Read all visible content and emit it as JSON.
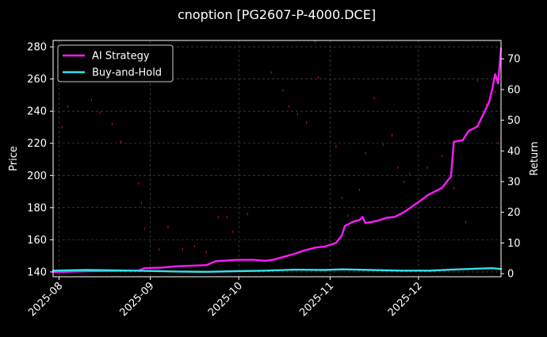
{
  "chart_data": {
    "type": "line",
    "title": "cnoption [PG2607-P-4000.DCE]",
    "ylabel": "Price",
    "y2label": "Return",
    "ylim": [
      137,
      284
    ],
    "y2lim": [
      -1,
      76
    ],
    "xlim": [
      "2025-07-30",
      "2025-12-29"
    ],
    "yticks": [
      140,
      160,
      180,
      200,
      220,
      240,
      260,
      280
    ],
    "y2ticks": [
      0,
      10,
      20,
      30,
      40,
      50,
      60,
      70
    ],
    "xticks": [
      {
        "date": "2025-08-01",
        "label": "2025-08"
      },
      {
        "date": "2025-09-01",
        "label": "2025-09"
      },
      {
        "date": "2025-10-01",
        "label": "2025-10"
      },
      {
        "date": "2025-11-01",
        "label": "2025-11"
      },
      {
        "date": "2025-12-01",
        "label": "2025-12"
      }
    ],
    "grid": true,
    "legend_position": "top-left",
    "series": [
      {
        "name": "AI Strategy",
        "axis": "right",
        "color": "#ff1aff",
        "points": [
          [
            "2025-07-30",
            0.5
          ],
          [
            "2025-08-10",
            0.8
          ],
          [
            "2025-08-20",
            0.9
          ],
          [
            "2025-08-28",
            1.0
          ],
          [
            "2025-08-30",
            1.8
          ],
          [
            "2025-09-05",
            2.0
          ],
          [
            "2025-09-10",
            2.4
          ],
          [
            "2025-09-15",
            2.6
          ],
          [
            "2025-09-20",
            2.8
          ],
          [
            "2025-09-23",
            4.0
          ],
          [
            "2025-09-27",
            4.3
          ],
          [
            "2025-10-01",
            4.5
          ],
          [
            "2025-10-06",
            4.5
          ],
          [
            "2025-10-10",
            4.2
          ],
          [
            "2025-10-13",
            4.6
          ],
          [
            "2025-10-16",
            5.4
          ],
          [
            "2025-10-20",
            6.5
          ],
          [
            "2025-10-23",
            7.5
          ],
          [
            "2025-10-27",
            8.5
          ],
          [
            "2025-10-30",
            8.8
          ],
          [
            "2025-11-03",
            10.0
          ],
          [
            "2025-11-05",
            12.5
          ],
          [
            "2025-11-06",
            15.5
          ],
          [
            "2025-11-09",
            17.0
          ],
          [
            "2025-11-11",
            17.5
          ],
          [
            "2025-11-12",
            18.5
          ],
          [
            "2025-11-13",
            16.5
          ],
          [
            "2025-11-16",
            17.0
          ],
          [
            "2025-11-18",
            17.5
          ],
          [
            "2025-11-20",
            18.2
          ],
          [
            "2025-11-23",
            18.5
          ],
          [
            "2025-11-26",
            20.0
          ],
          [
            "2025-11-29",
            22.0
          ],
          [
            "2025-12-02",
            24.0
          ],
          [
            "2025-12-04",
            25.5
          ],
          [
            "2025-12-06",
            26.5
          ],
          [
            "2025-12-09",
            28.0
          ],
          [
            "2025-12-11",
            30.5
          ],
          [
            "2025-12-12",
            31.5
          ],
          [
            "2025-12-13",
            43.0
          ],
          [
            "2025-12-16",
            43.5
          ],
          [
            "2025-12-18",
            46.5
          ],
          [
            "2025-12-21",
            48.0
          ],
          [
            "2025-12-23",
            52.0
          ],
          [
            "2025-12-25",
            56.0
          ],
          [
            "2025-12-26",
            60.0
          ],
          [
            "2025-12-27",
            65.0
          ],
          [
            "2025-12-28",
            62.0
          ],
          [
            "2025-12-29",
            73.5
          ]
        ]
      },
      {
        "name": "Buy-and-Hold",
        "axis": "right",
        "color": "#33e0ee",
        "points": [
          [
            "2025-07-30",
            1.0
          ],
          [
            "2025-08-10",
            1.2
          ],
          [
            "2025-08-20",
            1.1
          ],
          [
            "2025-08-30",
            0.9
          ],
          [
            "2025-09-10",
            0.7
          ],
          [
            "2025-09-20",
            0.6
          ],
          [
            "2025-09-30",
            0.8
          ],
          [
            "2025-10-10",
            1.0
          ],
          [
            "2025-10-20",
            1.3
          ],
          [
            "2025-10-30",
            1.2
          ],
          [
            "2025-11-05",
            1.4
          ],
          [
            "2025-11-15",
            1.2
          ],
          [
            "2025-11-25",
            1.0
          ],
          [
            "2025-12-05",
            1.0
          ],
          [
            "2025-12-12",
            1.3
          ],
          [
            "2025-12-20",
            1.6
          ],
          [
            "2025-12-26",
            1.8
          ],
          [
            "2025-12-29",
            1.5
          ]
        ]
      }
    ],
    "price_marks": [
      [
        "2025-08-02",
        230
      ],
      [
        "2025-08-04",
        243
      ],
      [
        "2025-08-12",
        247
      ],
      [
        "2025-08-15",
        239
      ],
      [
        "2025-08-19",
        232
      ],
      [
        "2025-08-22",
        221
      ],
      [
        "2025-08-28",
        195
      ],
      [
        "2025-08-29",
        183
      ],
      [
        "2025-08-30",
        167
      ],
      [
        "2025-09-04",
        154
      ],
      [
        "2025-09-07",
        168
      ],
      [
        "2025-09-12",
        154
      ],
      [
        "2025-09-16",
        156
      ],
      [
        "2025-09-20",
        152
      ],
      [
        "2025-09-24",
        174
      ],
      [
        "2025-09-27",
        174
      ],
      [
        "2025-09-29",
        165
      ],
      [
        "2025-10-04",
        176
      ],
      [
        "2025-10-12",
        264
      ],
      [
        "2025-10-16",
        253
      ],
      [
        "2025-10-18",
        243
      ],
      [
        "2025-10-21",
        238
      ],
      [
        "2025-10-24",
        233
      ],
      [
        "2025-10-27",
        283
      ],
      [
        "2025-10-28",
        261
      ],
      [
        "2025-11-03",
        218
      ],
      [
        "2025-11-05",
        186
      ],
      [
        "2025-11-07",
        175
      ],
      [
        "2025-11-11",
        191
      ],
      [
        "2025-11-13",
        214
      ],
      [
        "2025-11-16",
        248
      ],
      [
        "2025-11-19",
        219
      ],
      [
        "2025-11-22",
        225
      ],
      [
        "2025-11-24",
        205
      ],
      [
        "2025-11-26",
        196
      ],
      [
        "2025-11-28",
        201
      ],
      [
        "2025-12-04",
        205
      ],
      [
        "2025-12-09",
        212
      ],
      [
        "2025-12-13",
        192
      ],
      [
        "2025-12-17",
        171
      ],
      [
        "2025-12-21",
        259
      ],
      [
        "2025-12-24",
        244
      ],
      [
        "2025-12-27",
        252
      ],
      [
        "2025-12-28",
        220
      ]
    ]
  }
}
